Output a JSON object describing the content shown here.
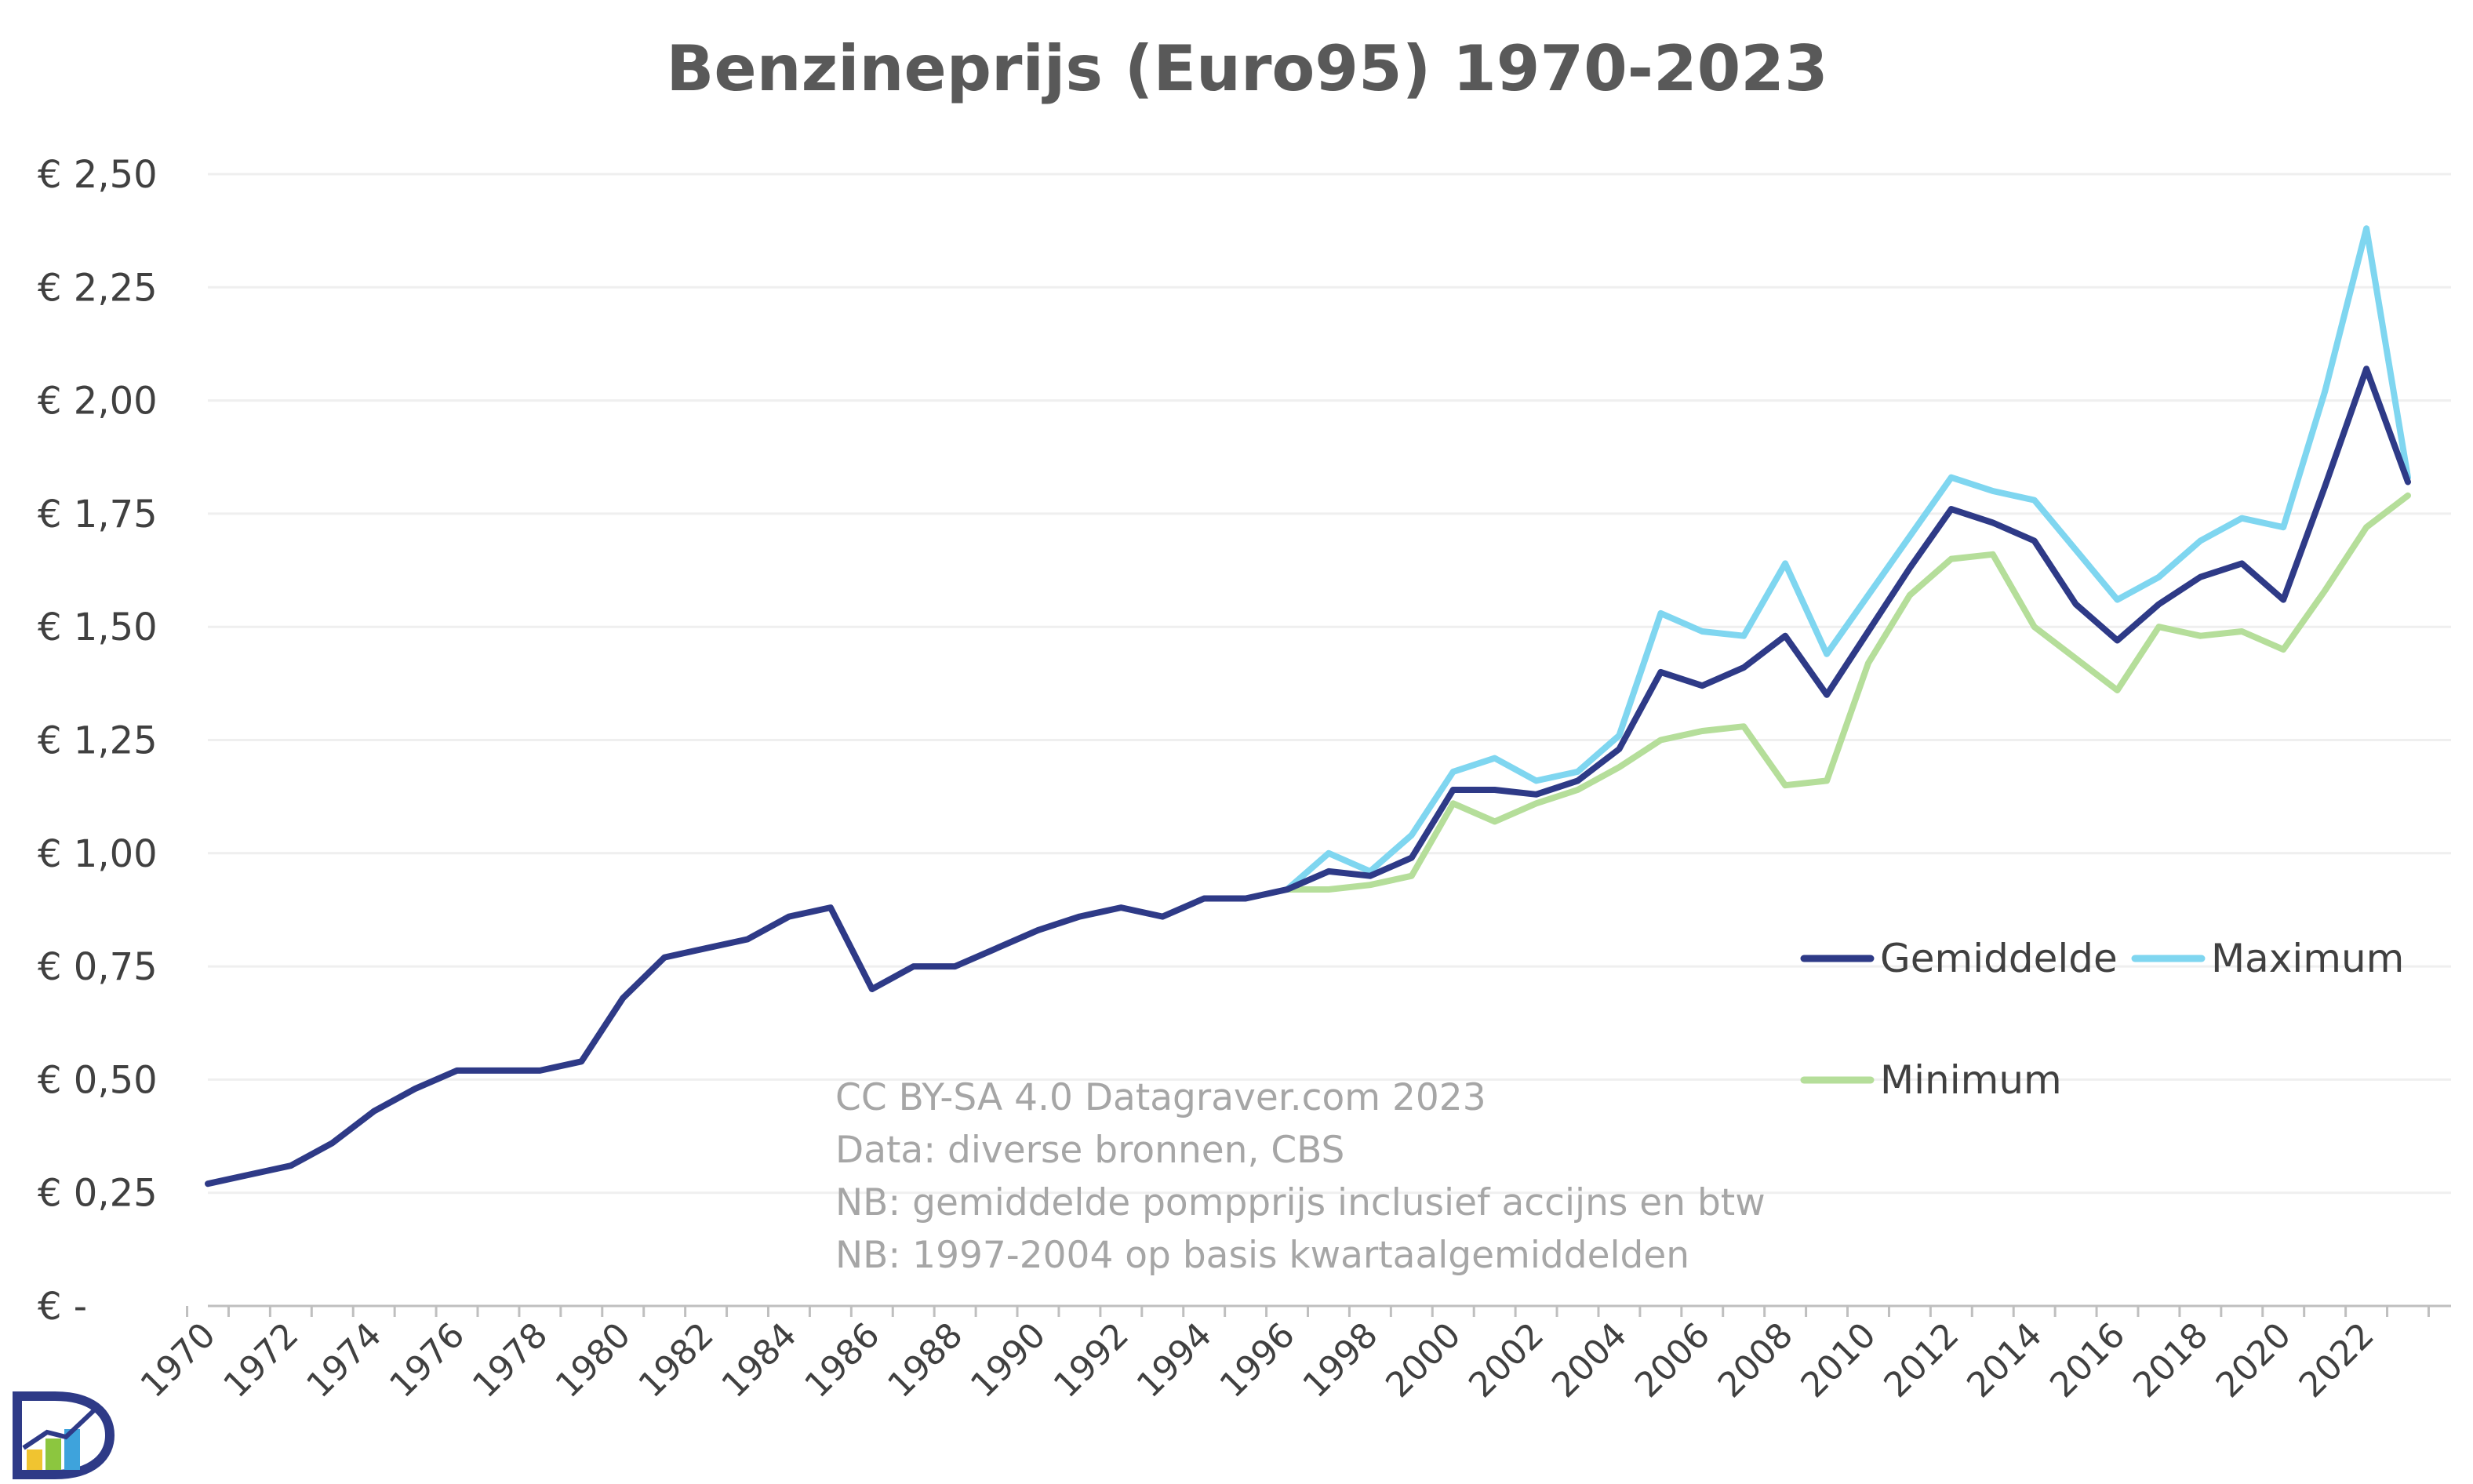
{
  "chart_data": {
    "type": "line",
    "title": "Benzineprijs (Euro95) 1970-2023",
    "x": [
      1970,
      1971,
      1972,
      1973,
      1974,
      1975,
      1976,
      1977,
      1978,
      1979,
      1980,
      1981,
      1982,
      1983,
      1984,
      1985,
      1986,
      1987,
      1988,
      1989,
      1990,
      1991,
      1992,
      1993,
      1994,
      1995,
      1996,
      1997,
      1998,
      1999,
      2000,
      2001,
      2002,
      2003,
      2004,
      2005,
      2006,
      2007,
      2008,
      2009,
      2010,
      2011,
      2012,
      2013,
      2014,
      2015,
      2016,
      2017,
      2018,
      2019,
      2020,
      2021,
      2022,
      2023
    ],
    "x_tick_labels": [
      "1970",
      "1972",
      "1974",
      "1976",
      "1978",
      "1980",
      "1982",
      "1984",
      "1986",
      "1988",
      "1990",
      "1992",
      "1994",
      "1996",
      "1998",
      "2000",
      "2002",
      "2004",
      "2006",
      "2008",
      "2010",
      "2012",
      "2014",
      "2016",
      "2018",
      "2020",
      "2022"
    ],
    "y_tick_labels": [
      "€ -",
      "€ 0,25",
      "€ 0,50",
      "€ 0,75",
      "€ 1,00",
      "€ 1,25",
      "€ 1,50",
      "€ 1,75",
      "€ 2,00",
      "€ 2,25",
      "€ 2,50"
    ],
    "ylim": [
      0,
      2.5
    ],
    "y_step": 0.25,
    "grid": "horizontal",
    "legend_position": "right",
    "series": [
      {
        "name": "Gemiddelde",
        "color": "#2e3a87",
        "values": [
          0.27,
          0.29,
          0.31,
          0.36,
          0.43,
          0.48,
          0.52,
          0.52,
          0.52,
          0.54,
          0.68,
          0.77,
          0.79,
          0.81,
          0.86,
          0.88,
          0.7,
          0.75,
          0.75,
          0.79,
          0.83,
          0.86,
          0.88,
          0.86,
          0.9,
          0.9,
          0.92,
          0.96,
          0.95,
          0.99,
          1.14,
          1.14,
          1.13,
          1.16,
          1.23,
          1.4,
          1.37,
          1.41,
          1.48,
          1.35,
          1.49,
          1.63,
          1.76,
          1.73,
          1.69,
          1.55,
          1.47,
          1.55,
          1.61,
          1.64,
          1.56,
          1.81,
          2.07,
          1.82
        ]
      },
      {
        "name": "Maximum",
        "color": "#7fd6f0",
        "values": [
          null,
          null,
          null,
          null,
          null,
          null,
          null,
          null,
          null,
          null,
          null,
          null,
          null,
          null,
          null,
          null,
          null,
          null,
          null,
          null,
          null,
          null,
          null,
          null,
          null,
          null,
          0.92,
          1.0,
          0.96,
          1.04,
          1.18,
          1.21,
          1.16,
          1.18,
          1.26,
          1.53,
          1.49,
          1.48,
          1.64,
          1.44,
          1.57,
          1.7,
          1.83,
          1.8,
          1.78,
          1.67,
          1.56,
          1.61,
          1.69,
          1.74,
          1.72,
          2.02,
          2.38,
          1.83
        ]
      },
      {
        "name": "Minimum",
        "color": "#b5de9a",
        "values": [
          null,
          null,
          null,
          null,
          null,
          null,
          null,
          null,
          null,
          null,
          null,
          null,
          null,
          null,
          null,
          null,
          null,
          null,
          null,
          null,
          null,
          null,
          null,
          null,
          null,
          null,
          0.92,
          0.92,
          0.93,
          0.95,
          1.11,
          1.07,
          1.11,
          1.14,
          1.19,
          1.25,
          1.27,
          1.28,
          1.15,
          1.16,
          1.42,
          1.57,
          1.65,
          1.66,
          1.5,
          1.43,
          1.36,
          1.5,
          1.48,
          1.49,
          1.45,
          1.58,
          1.72,
          1.79
        ]
      }
    ],
    "annotations": [
      "CC BY-SA 4.0 Datagraver.com 2023",
      "Data: diverse bronnen, CBS",
      "NB: gemiddelde pompprijs inclusief accijns en btw",
      "NB: 1997-2004 op basis kwartaalgemiddelden"
    ]
  },
  "logo": {
    "name": "Datagraver logo",
    "letter": "D",
    "colors": [
      "#2e3a87",
      "#f0c430",
      "#8cc63f",
      "#3ea3dc"
    ]
  }
}
